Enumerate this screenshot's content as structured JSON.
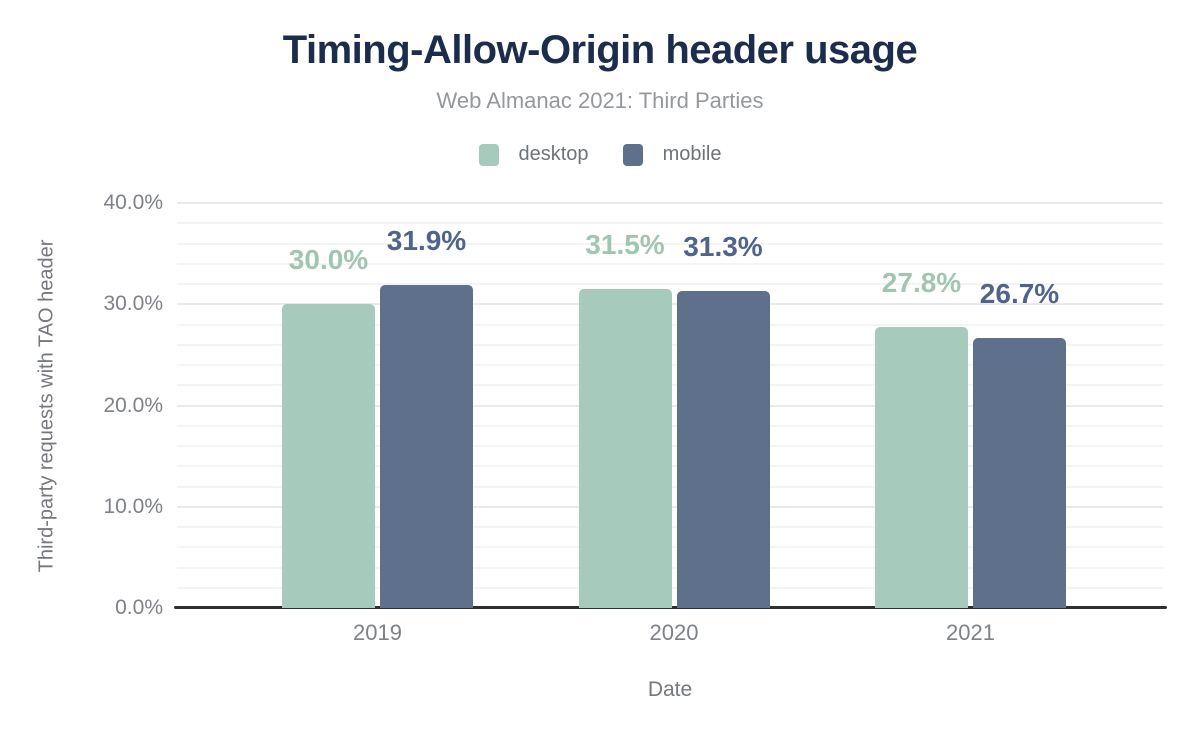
{
  "chart_data": {
    "type": "bar",
    "title": "Timing-Allow-Origin header usage",
    "subtitle": "Web Almanac 2021: Third Parties",
    "xlabel": "Date",
    "ylabel": "Third-party requests with TAO header",
    "categories": [
      "2019",
      "2020",
      "2021"
    ],
    "series": [
      {
        "name": "desktop",
        "color": "#a6cabb",
        "label_color": "#a0c6b2",
        "values": [
          30.0,
          31.5,
          27.8
        ],
        "value_labels": [
          "30.0%",
          "31.5%",
          "27.8%"
        ]
      },
      {
        "name": "mobile",
        "color": "#5e708c",
        "label_color": "#50638b",
        "values": [
          31.9,
          31.3,
          26.7
        ],
        "value_labels": [
          "31.9%",
          "31.3%",
          "26.7%"
        ]
      }
    ],
    "ylim": [
      0,
      40
    ],
    "ytick_values": [
      0,
      10,
      20,
      30,
      40
    ],
    "ytick_labels": [
      "0.0%",
      "10.0%",
      "20.0%",
      "30.0%",
      "40.0%"
    ],
    "minor_grid_step": 2,
    "grid": "horizontal",
    "legend_position": "top"
  },
  "colors": {
    "background": "#ffffff",
    "title": "#1c2c4c",
    "subtitle": "#94989d",
    "legend_text": "#6e7379",
    "tick_text": "#7e8187",
    "axis_title_text": "#74777c",
    "grid_minor": "#f4f4f4",
    "grid_major": "#eaeaea",
    "axis_line": "#2f2f2f"
  }
}
